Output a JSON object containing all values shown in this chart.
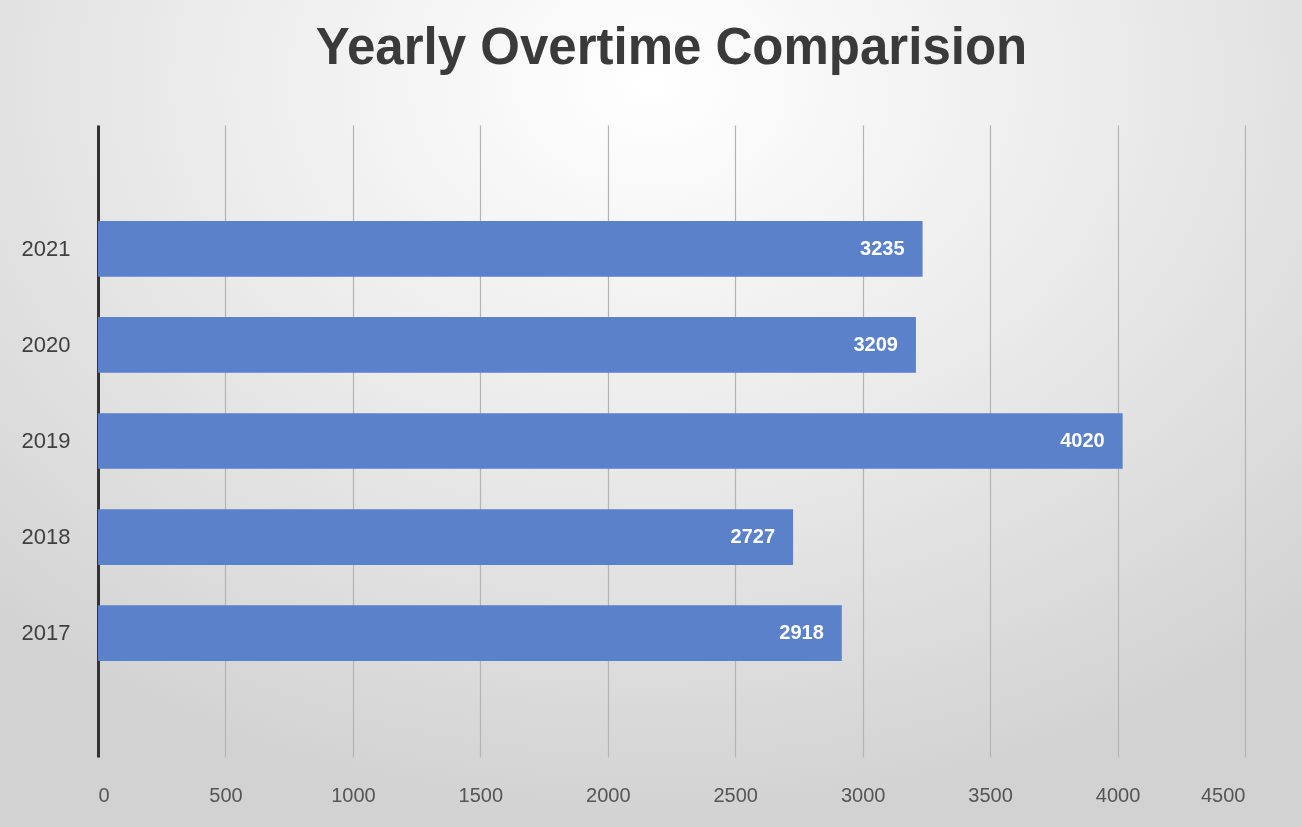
{
  "chart_data": {
    "type": "bar",
    "title": "Yearly Overtime Comparision",
    "orientation": "horizontal",
    "categories": [
      "2021",
      "2020",
      "2019",
      "2018",
      "2017"
    ],
    "values": [
      3235,
      3209,
      4020,
      2727,
      2918
    ],
    "color": "#5a81c9",
    "xlim": [
      0,
      4500
    ],
    "xticks": [
      0,
      500,
      1000,
      1500,
      2000,
      2500,
      3000,
      3500,
      4000,
      4500
    ],
    "grid": "x",
    "data_labels": true
  }
}
